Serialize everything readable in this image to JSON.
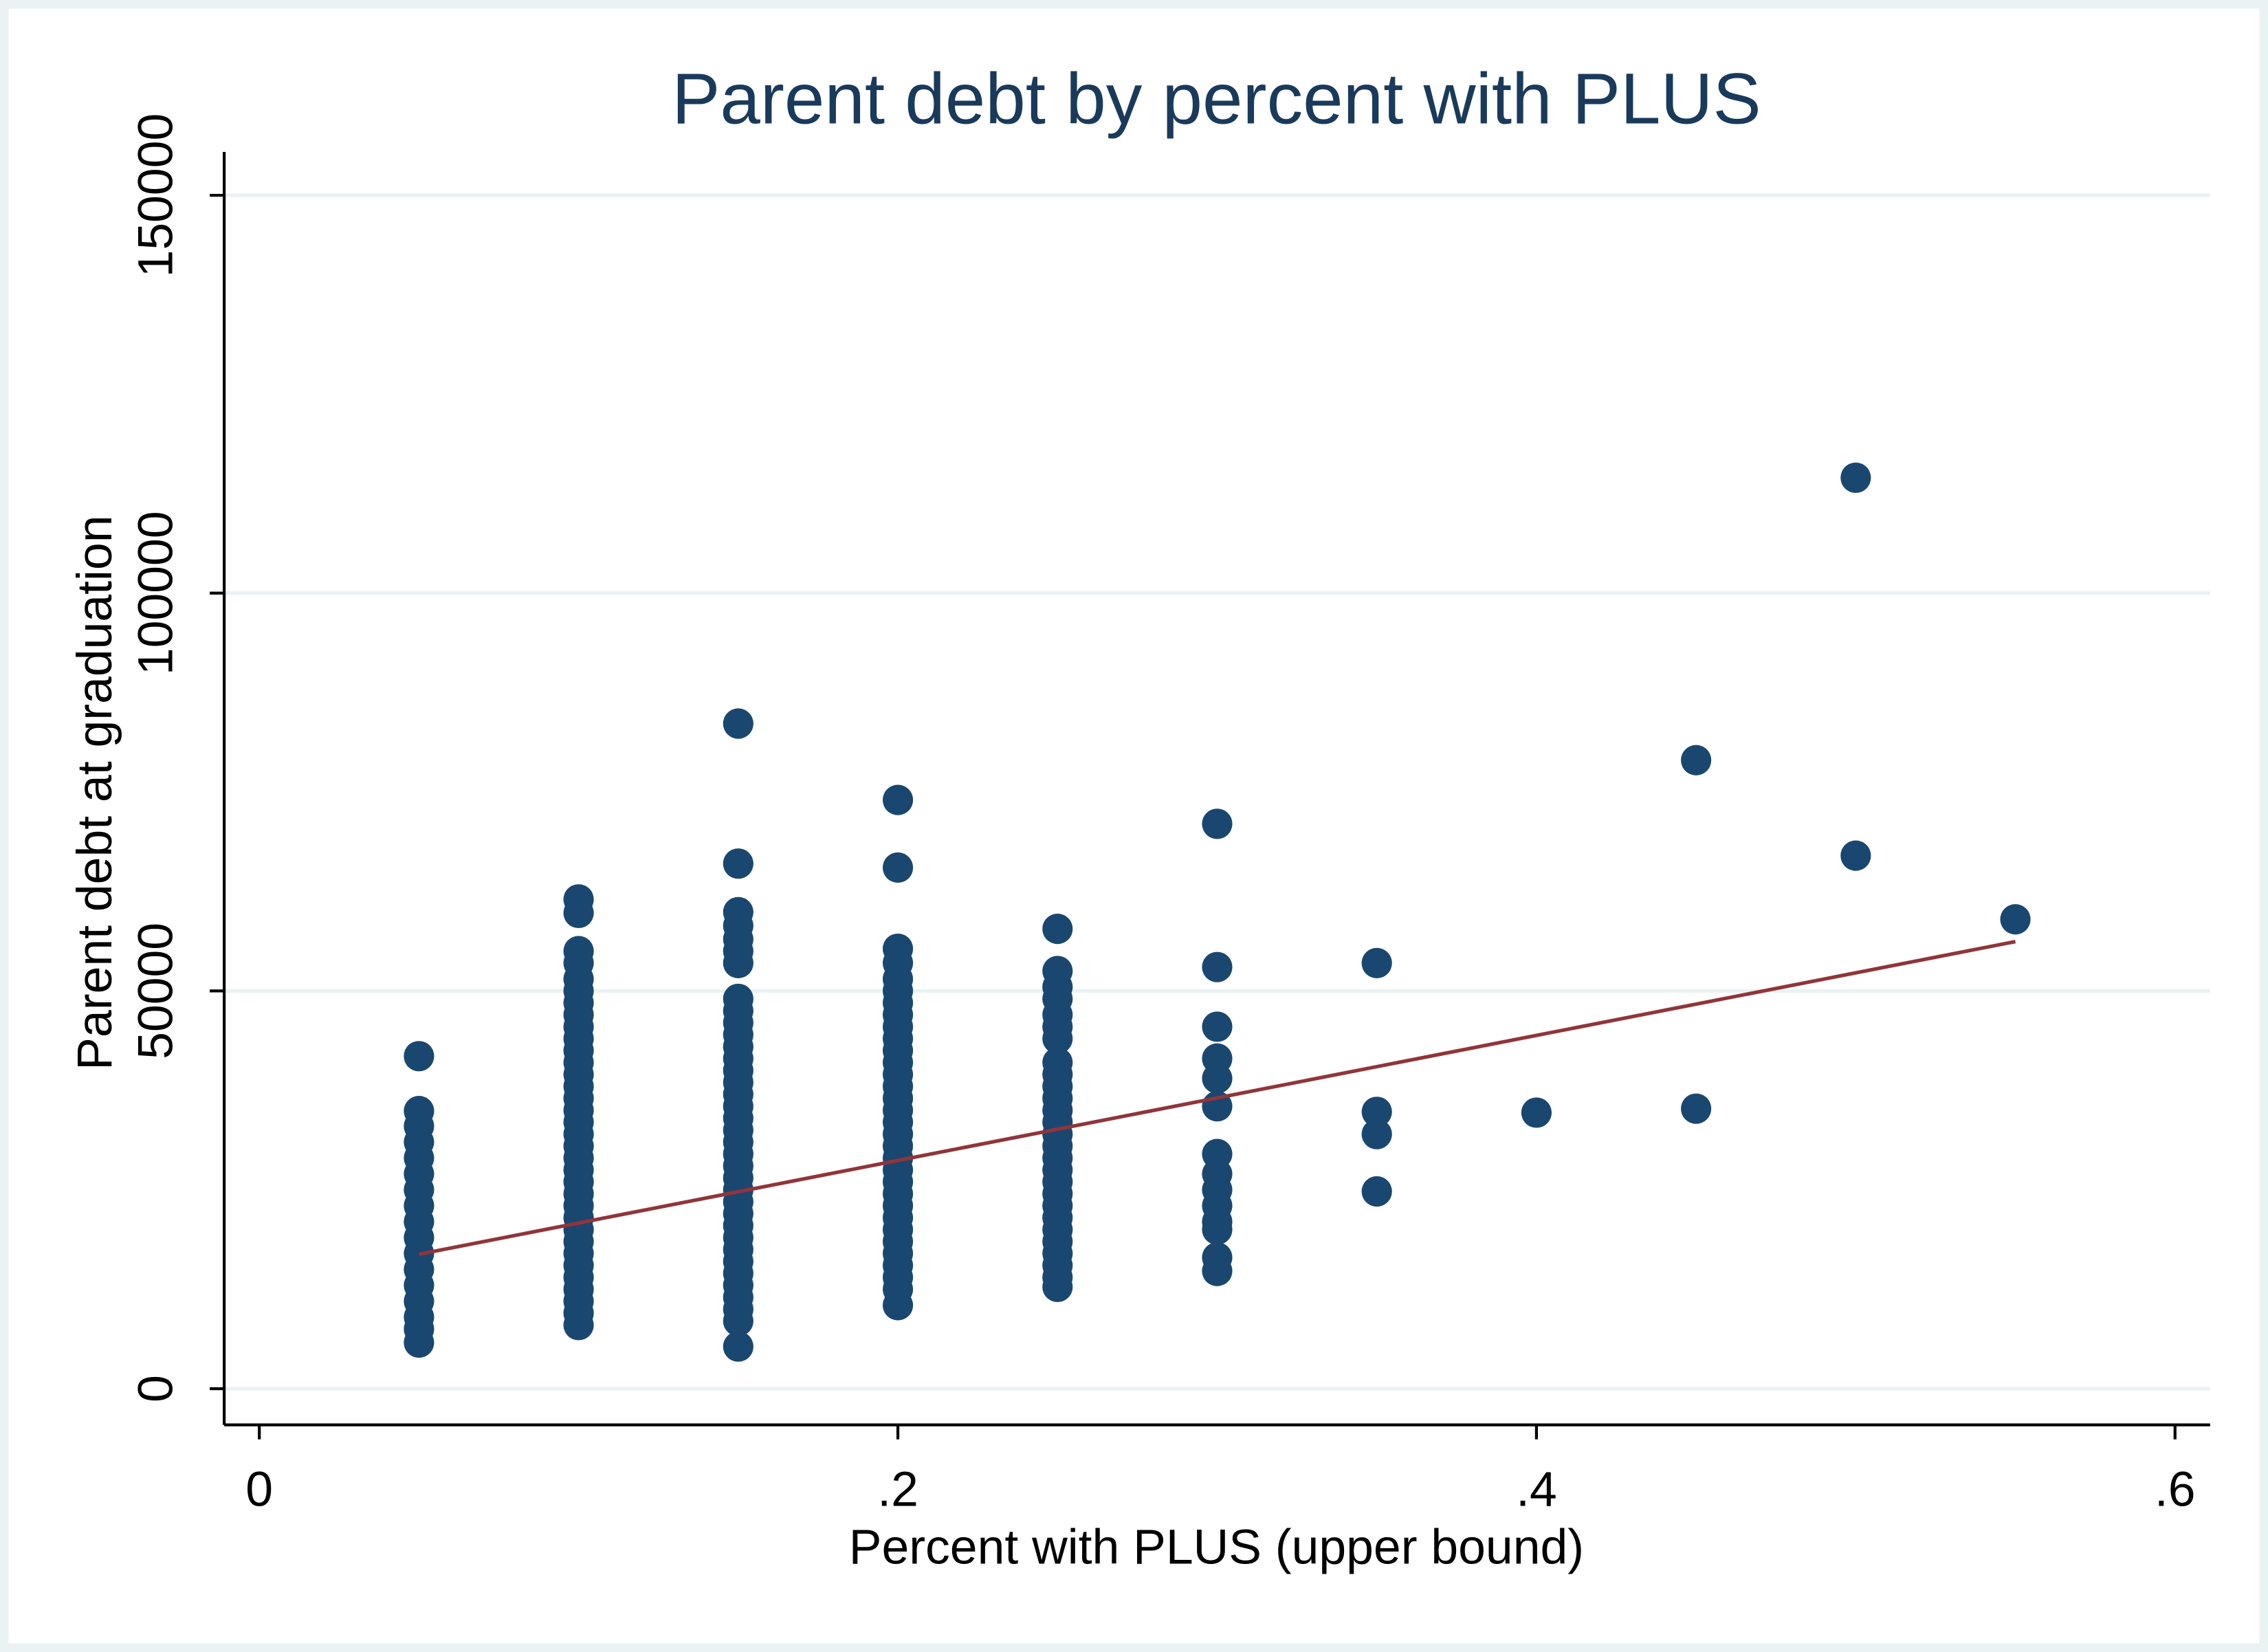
{
  "chart_data": {
    "type": "scatter",
    "title": "Parent debt by percent with PLUS",
    "x_label": "Percent with PLUS (upper bound)",
    "y_label": "Parent debt at graduation",
    "xlim": [
      -0.011,
      0.611
    ],
    "ylim": [
      -4545,
      155455
    ],
    "xticks": [
      0,
      {
        "value": 0.2,
        "label": ".2"
      },
      {
        "value": 0.4,
        "label": ".4"
      },
      {
        "value": 0.6,
        "label": ".6"
      }
    ],
    "yticks": [
      0,
      50000,
      100000,
      150000
    ],
    "grid": true,
    "series": [
      {
        "color": "#1a476f",
        "x": [
          0.05,
          0.05,
          0.05,
          0.05,
          0.05,
          0.05,
          0.05,
          0.05,
          0.05,
          0.05,
          0.05,
          0.05,
          0.05,
          0.05,
          0.05,
          0.05,
          0.05
        ],
        "values": [
          41800,
          34900,
          33000,
          31000,
          29000,
          27000,
          25000,
          23000,
          21000,
          19000,
          17000,
          15000,
          13000,
          11000,
          9000,
          7500,
          5800
        ]
      },
      {
        "color": "#1a476f",
        "x": [
          0.1,
          0.1,
          0.1,
          0.1,
          0.1,
          0.1,
          0.1,
          0.1,
          0.1,
          0.1,
          0.1,
          0.1,
          0.1,
          0.1,
          0.1,
          0.1,
          0.1,
          0.1,
          0.1,
          0.1,
          0.1,
          0.1,
          0.1,
          0.1,
          0.1,
          0.1,
          0.1,
          0.1,
          0.1,
          0.1,
          0.1,
          0.1,
          0.1,
          0.1
        ],
        "values": [
          61500,
          59800,
          55000,
          53500,
          51500,
          50000,
          48500,
          47000,
          45500,
          44000,
          42500,
          41000,
          39500,
          38000,
          36500,
          35000,
          33500,
          32000,
          30500,
          29000,
          27500,
          26000,
          24500,
          23000,
          21500,
          20000,
          18500,
          17000,
          15500,
          14000,
          12500,
          11000,
          9500,
          8000
        ]
      },
      {
        "color": "#1a476f",
        "x": [
          0.15,
          0.15,
          0.15,
          0.15,
          0.15,
          0.15,
          0.15,
          0.15,
          0.15,
          0.15,
          0.15,
          0.15,
          0.15,
          0.15,
          0.15,
          0.15,
          0.15,
          0.15,
          0.15,
          0.15,
          0.15,
          0.15,
          0.15,
          0.15,
          0.15,
          0.15,
          0.15,
          0.15,
          0.15,
          0.15,
          0.15,
          0.15,
          0.15,
          0.15,
          0.15,
          0.15
        ],
        "values": [
          83600,
          66000,
          59900,
          58200,
          56500,
          55000,
          53500,
          49000,
          47500,
          46000,
          44500,
          43000,
          41500,
          40000,
          38500,
          37000,
          35500,
          34000,
          32500,
          31000,
          29500,
          28000,
          26500,
          25000,
          23500,
          22000,
          20500,
          19000,
          17500,
          16000,
          14500,
          13000,
          11500,
          10000,
          8500,
          5300
        ]
      },
      {
        "color": "#1a476f",
        "x": [
          0.2,
          0.2,
          0.2,
          0.2,
          0.2,
          0.2,
          0.2,
          0.2,
          0.2,
          0.2,
          0.2,
          0.2,
          0.2,
          0.2,
          0.2,
          0.2,
          0.2,
          0.2,
          0.2,
          0.2,
          0.2,
          0.2,
          0.2,
          0.2,
          0.2,
          0.2,
          0.2,
          0.2,
          0.2,
          0.2,
          0.2,
          0.2
        ],
        "values": [
          74000,
          65500,
          55300,
          53500,
          51500,
          50000,
          48500,
          47000,
          45500,
          44000,
          42500,
          41000,
          39500,
          38000,
          36500,
          35000,
          33500,
          32000,
          30500,
          29000,
          27500,
          26000,
          24500,
          23000,
          21500,
          20000,
          18500,
          17000,
          15500,
          14000,
          12500,
          10500
        ]
      },
      {
        "color": "#1a476f",
        "x": [
          0.25,
          0.25,
          0.25,
          0.25,
          0.25,
          0.25,
          0.25,
          0.25,
          0.25,
          0.25,
          0.25,
          0.25,
          0.25,
          0.25,
          0.25,
          0.25,
          0.25,
          0.25,
          0.25,
          0.25,
          0.25,
          0.25,
          0.25,
          0.25,
          0.25,
          0.25,
          0.25
        ],
        "values": [
          57800,
          52500,
          50500,
          49000,
          47000,
          45500,
          44000,
          41000,
          39500,
          38000,
          36500,
          35000,
          33500,
          32000,
          30500,
          29000,
          27500,
          26000,
          24500,
          23000,
          21500,
          20000,
          18500,
          17000,
          15500,
          14000,
          12800
        ]
      },
      {
        "color": "#1a476f",
        "x": [
          0.3,
          0.3,
          0.3,
          0.3,
          0.3,
          0.3,
          0.3,
          0.3,
          0.3,
          0.3,
          0.3,
          0.3,
          0.3,
          0.3
        ],
        "values": [
          71000,
          53000,
          45500,
          41500,
          39000,
          35500,
          29500,
          27000,
          25000,
          23000,
          21000,
          20000,
          16500,
          14800
        ]
      },
      {
        "color": "#1a476f",
        "x": [
          0.35,
          0.35,
          0.35,
          0.35,
          0.4,
          0.45,
          0.45,
          0.5,
          0.5,
          0.55
        ],
        "values": [
          53500,
          34800,
          32000,
          24800,
          34700,
          79000,
          35200,
          114500,
          67000,
          59000
        ]
      },
      {
        "type": "line",
        "color": "#90353b",
        "x": [
          0.05,
          0.55
        ],
        "values": [
          16900,
          56200
        ]
      }
    ]
  }
}
